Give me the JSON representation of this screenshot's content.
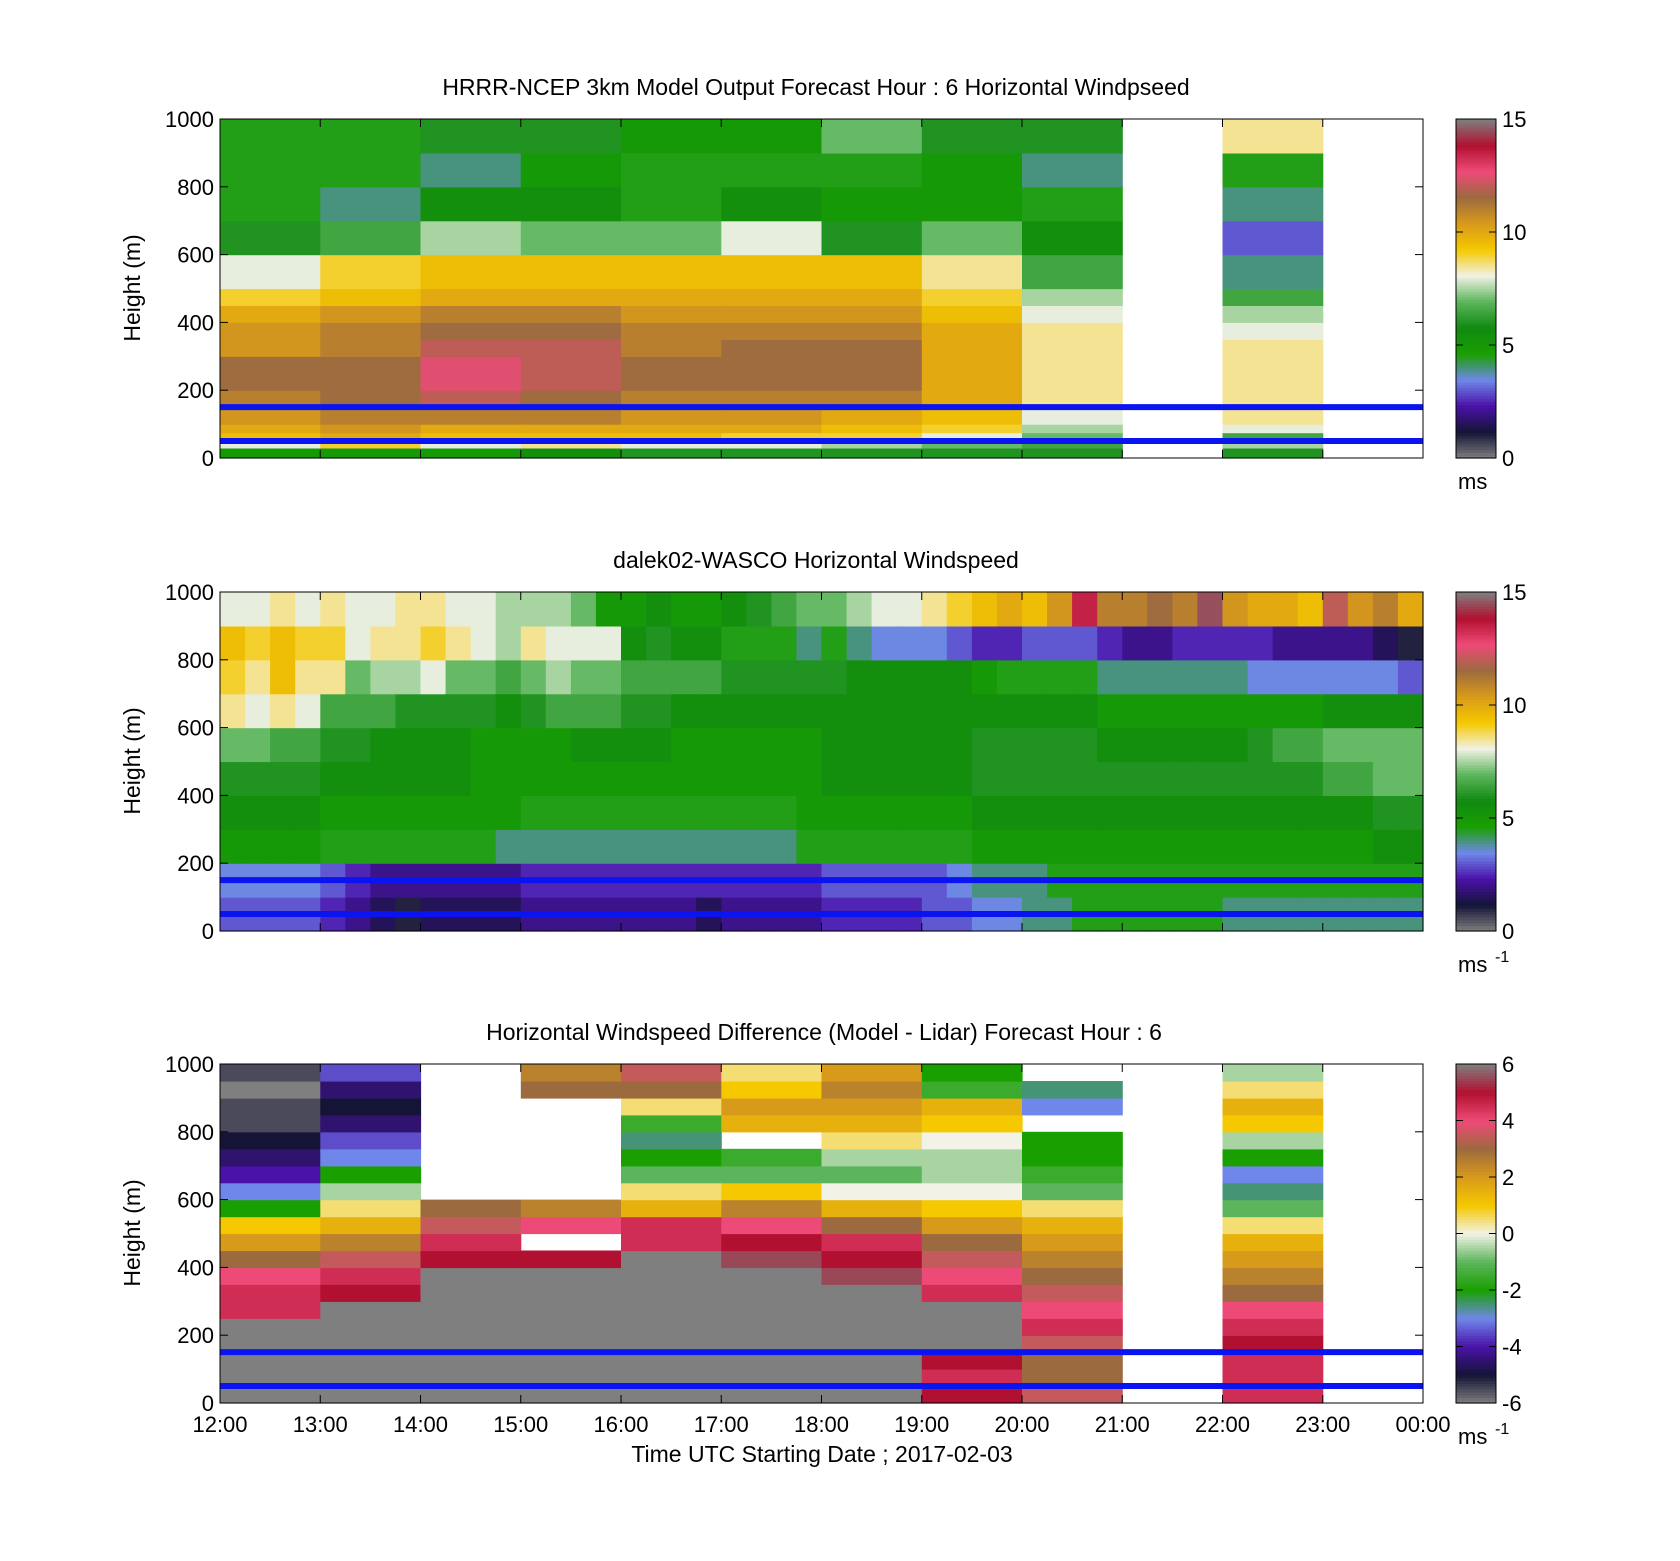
{
  "colors": {
    "windspeed_scale": [
      "#7f7f7f",
      "#141436",
      "#4a12a8",
      "#6f87ea",
      "#19a000",
      "#118a11",
      "#5cb55c",
      "#f2f2e6",
      "#f5c800",
      "#d89a1a",
      "#9c6a3f",
      "#ee4a78",
      "#b21030",
      "#7f7f7f"
    ],
    "difference_scale": [
      "#7f7f7f",
      "#141436",
      "#4a12a8",
      "#6f87ea",
      "#19a000",
      "#5cb55c",
      "#f2f2e6",
      "#f5c800",
      "#d89a1a",
      "#9c6a3f",
      "#ee4a78",
      "#b21030",
      "#7f7f7f"
    ],
    "missing": "#ffffff",
    "reference_lines": "#0a14f0"
  },
  "x_axis": {
    "ticks": [
      "12:00",
      "13:00",
      "14:00",
      "15:00",
      "16:00",
      "17:00",
      "18:00",
      "19:00",
      "20:00",
      "21:00",
      "22:00",
      "23:00",
      "00:00"
    ],
    "label": "Time UTC  Starting Date ; 2017-02-03"
  },
  "chart_data": [
    {
      "type": "heatmap",
      "title": "HRRR-NCEP 3km Model Output   Forecast Hour : 6 Horizontal Windpseed",
      "xlabel": "",
      "ylabel": "Height (m)",
      "yticks": [
        "0",
        "200",
        "400",
        "600",
        "800",
        "1000"
      ],
      "ylim": [
        0,
        1000
      ],
      "colorbar": {
        "ticks": [
          "0",
          "5",
          "10",
          "15"
        ],
        "unit": "ms",
        "unit_exp": "",
        "range": [
          0,
          15
        ]
      },
      "reference_lines_m": [
        150,
        50
      ],
      "x_start_hours": [
        0,
        1,
        2,
        3,
        4,
        5,
        6,
        7,
        8,
        10
      ],
      "x_width_hours": 1,
      "height_levels_m": [
        0,
        30,
        50,
        75,
        100,
        150,
        200,
        250,
        300,
        350,
        400,
        450,
        500,
        600,
        700,
        800,
        900,
        1000
      ],
      "values": [
        [
          5,
          8,
          9.5,
          10,
          10.5,
          11,
          11.5,
          11.5,
          10.5,
          10.5,
          10,
          9,
          8,
          6,
          4.5,
          4.5,
          4.5
        ],
        [
          5,
          9,
          10,
          10.5,
          11,
          11.5,
          11.5,
          11.5,
          11,
          11,
          10.5,
          9.5,
          9,
          6.5,
          4,
          4.5,
          4.5
        ],
        [
          5,
          8,
          9.5,
          10,
          11,
          12,
          12.5,
          12.5,
          12,
          11.5,
          11,
          10,
          9.5,
          7.5,
          5.5,
          4,
          6
        ],
        [
          5.5,
          8.5,
          9.5,
          10,
          11,
          11.5,
          12,
          12,
          12,
          11.5,
          11,
          10,
          9.5,
          7,
          5.5,
          5,
          6
        ],
        [
          6,
          8,
          9.5,
          10,
          10.5,
          11,
          11.5,
          11.5,
          11,
          11,
          10.5,
          10,
          9.5,
          7,
          4.5,
          4.5,
          5
        ],
        [
          6,
          8,
          9,
          10,
          10.5,
          11,
          11.5,
          11.5,
          11.5,
          11,
          10.5,
          10,
          9.5,
          8,
          5.5,
          4.5,
          5
        ],
        [
          6,
          7.5,
          9,
          9.5,
          10,
          11,
          11.5,
          11.5,
          11.5,
          11,
          10.5,
          10,
          9.5,
          6,
          5,
          4.5,
          7
        ],
        [
          6,
          7,
          8,
          9,
          9.5,
          10,
          10,
          10,
          10,
          10,
          9.5,
          9,
          8.5,
          7,
          5,
          5,
          6
        ],
        [
          6,
          6.5,
          7,
          7.5,
          8,
          8.5,
          8.5,
          8.5,
          8.5,
          8.5,
          8,
          7.5,
          6.5,
          5.5,
          4.5,
          4,
          6
        ],
        [
          6,
          7.5,
          6.5,
          8,
          8.5,
          8.5,
          8.5,
          8.5,
          8.5,
          8,
          7.5,
          6.5,
          4,
          3,
          4,
          4.5,
          8.5
        ]
      ]
    },
    {
      "type": "heatmap",
      "title": "dalek02-WASCO  Horizontal Windspeed",
      "xlabel": "",
      "ylabel": "Height (m)",
      "yticks": [
        "0",
        "200",
        "400",
        "600",
        "800",
        "1000"
      ],
      "ylim": [
        0,
        1000
      ],
      "colorbar": {
        "ticks": [
          "0",
          "5",
          "10",
          "15"
        ],
        "unit": "ms",
        "unit_exp": "-1",
        "range": [
          0,
          15
        ]
      },
      "reference_lines_m": [
        150,
        50
      ],
      "x_step_hours": 0.25,
      "height_levels_m": [
        0,
        100,
        200,
        300,
        400,
        500,
        600,
        700,
        800,
        900,
        1000
      ],
      "x_start_hours": [
        0,
        0.25,
        0.5,
        0.75,
        1,
        1.25,
        1.5,
        1.75,
        2,
        2.25,
        2.5,
        2.75,
        3,
        3.25,
        3.5,
        3.75,
        4,
        4.25,
        4.5,
        4.75,
        5,
        5.25,
        5.5,
        5.75,
        6,
        6.25,
        6.5,
        6.75,
        7,
        7.25,
        7.5,
        7.75,
        8,
        8.25,
        8.5,
        8.75,
        9,
        9.25,
        9.5,
        9.75,
        10,
        10.25,
        10.5,
        10.75,
        11,
        11.25,
        11.5,
        11.75
      ],
      "values": [
        [
          3,
          3.5,
          5,
          5.5,
          6,
          7,
          8.5,
          9,
          9.5,
          8
        ],
        [
          3,
          3.5,
          5,
          5.5,
          6,
          7,
          8,
          8.5,
          9,
          8
        ],
        [
          3,
          3.5,
          5,
          5.5,
          6,
          6.5,
          8.5,
          9.5,
          9.5,
          8.5
        ],
        [
          3,
          3.5,
          5,
          5.5,
          6,
          6.5,
          8,
          8.5,
          9,
          8
        ],
        [
          2.5,
          3,
          4.5,
          5,
          5.5,
          6,
          6.5,
          8.5,
          9,
          8.5
        ],
        [
          2,
          2.5,
          4.5,
          5,
          5.5,
          6,
          6.5,
          7,
          8,
          8
        ],
        [
          1.5,
          2,
          4.5,
          5,
          5.5,
          5.5,
          6.5,
          7.5,
          8.5,
          8
        ],
        [
          1,
          2,
          4.5,
          5,
          5.5,
          5.5,
          6,
          7.5,
          8.5,
          8.5
        ],
        [
          1.5,
          2,
          4.5,
          5,
          5.5,
          5.5,
          6,
          8,
          9,
          8.5
        ],
        [
          1.5,
          2,
          4.5,
          5,
          5.5,
          5.5,
          6,
          7,
          8.5,
          8
        ],
        [
          1.5,
          2,
          4.5,
          5,
          5,
          5,
          6,
          7,
          8,
          8
        ],
        [
          1.5,
          2,
          4,
          5,
          5,
          5,
          5.5,
          6.5,
          7.5,
          7.5
        ],
        [
          2,
          2.5,
          4,
          4.5,
          5,
          5,
          6,
          7,
          8.5,
          7.5
        ],
        [
          2,
          2.5,
          4,
          4.5,
          5,
          5,
          6.5,
          7.5,
          8,
          7.5
        ],
        [
          2,
          2.5,
          4,
          4.5,
          5,
          5.5,
          6.5,
          7,
          8,
          7
        ],
        [
          2,
          2.5,
          4,
          4.5,
          5,
          5.5,
          6.5,
          7,
          8,
          5
        ],
        [
          2,
          2.5,
          4,
          4.5,
          5,
          5.5,
          6,
          6.5,
          5.5,
          5
        ],
        [
          2,
          2.5,
          4,
          4.5,
          5,
          5.5,
          6,
          6.5,
          6,
          5.5
        ],
        [
          2,
          2.5,
          4,
          4.5,
          5,
          5,
          5.5,
          6.5,
          5.5,
          5
        ],
        [
          1.5,
          2.5,
          4,
          4.5,
          5,
          5,
          5.5,
          6.5,
          5.5,
          5
        ],
        [
          2,
          2.5,
          4,
          4.5,
          5,
          5,
          5.5,
          6,
          4.5,
          5.5
        ],
        [
          2,
          2.5,
          4,
          4.5,
          5,
          5,
          5.5,
          6,
          4.5,
          6
        ],
        [
          2,
          2.5,
          4,
          4.5,
          5,
          5,
          5.5,
          6,
          4.5,
          6.5
        ],
        [
          2,
          2.5,
          4.5,
          5,
          5,
          5,
          5.5,
          6,
          4,
          7
        ],
        [
          2.5,
          3,
          4.5,
          5,
          5.5,
          5.5,
          5.5,
          6,
          4.5,
          7
        ],
        [
          2.5,
          3,
          4.5,
          5,
          5.5,
          5.5,
          5.5,
          5.5,
          4,
          7.5
        ],
        [
          2.5,
          3,
          4.5,
          5,
          5.5,
          5.5,
          5.5,
          5.5,
          3.5,
          8
        ],
        [
          2.5,
          3,
          4.5,
          5,
          5.5,
          5.5,
          5.5,
          5.5,
          3.5,
          8
        ],
        [
          3,
          3,
          4.5,
          5,
          5.5,
          5.5,
          5.5,
          5.5,
          3.5,
          8.5
        ],
        [
          3,
          3.5,
          4.5,
          5,
          5.5,
          5.5,
          5.5,
          5.5,
          3,
          9
        ],
        [
          3.5,
          4,
          5,
          5.5,
          6,
          6,
          5.5,
          5,
          2.5,
          9.5
        ],
        [
          3.5,
          4,
          5,
          5.5,
          6,
          6,
          5.5,
          4.5,
          2.5,
          10
        ],
        [
          4,
          4,
          5,
          5.5,
          6,
          6,
          5.5,
          4.5,
          3,
          9.5
        ],
        [
          4,
          4.5,
          5,
          5.5,
          6,
          6,
          5.5,
          4.5,
          3,
          10.5
        ],
        [
          4.5,
          4.5,
          5,
          5.5,
          6,
          6,
          5.5,
          4.5,
          3,
          13.5
        ],
        [
          4.5,
          4.5,
          5,
          5.5,
          6,
          5.5,
          5,
          4,
          2.5,
          11
        ],
        [
          4.5,
          4.5,
          5,
          5.5,
          6,
          5.5,
          5,
          4,
          2,
          11
        ],
        [
          4.5,
          4.5,
          5,
          5.5,
          6,
          5.5,
          5,
          4,
          2,
          11.5
        ],
        [
          4.5,
          4.5,
          5,
          5.5,
          6,
          5.5,
          5,
          4,
          2.5,
          11
        ],
        [
          4.5,
          4.5,
          5,
          5.5,
          6,
          5.5,
          5,
          4,
          2.5,
          14.5
        ],
        [
          4,
          4.5,
          5,
          5.5,
          6,
          5.5,
          5,
          4,
          2.5,
          10.5
        ],
        [
          4,
          4.5,
          5,
          5.5,
          6,
          6,
          5,
          3.5,
          2.5,
          10
        ],
        [
          4,
          4.5,
          5,
          5.5,
          6,
          6.5,
          5,
          3.5,
          2,
          10
        ],
        [
          4,
          4.5,
          5,
          5.5,
          6,
          6.5,
          5,
          3.5,
          2,
          9.5
        ],
        [
          4,
          4.5,
          5,
          5.5,
          6.5,
          7,
          5.5,
          3.5,
          2,
          12
        ],
        [
          4,
          4.5,
          5,
          5.5,
          6.5,
          7,
          5.5,
          3.5,
          2,
          10.5
        ],
        [
          4,
          4.5,
          5.5,
          6,
          7,
          7,
          5.5,
          3.5,
          1.5,
          11
        ],
        [
          4,
          4.5,
          5.5,
          6,
          7,
          7,
          5.5,
          3,
          1,
          10
        ]
      ]
    },
    {
      "type": "heatmap",
      "title": "Horizontal Windspeed Difference (Model - Lidar) Forecast Hour : 6",
      "xlabel": "Time UTC  Starting Date ; 2017-02-03",
      "ylabel": "Height (m)",
      "yticks": [
        "0",
        "200",
        "400",
        "600",
        "800",
        "1000"
      ],
      "ylim": [
        0,
        1000
      ],
      "colorbar": {
        "ticks": [
          "-6",
          "-4",
          "-2",
          "0",
          "2",
          "4",
          "6"
        ],
        "unit": "ms",
        "unit_exp": "-1",
        "range": [
          -6,
          6
        ]
      },
      "reference_lines_m": [
        150,
        50
      ],
      "x_start_hours": [
        0,
        1,
        2,
        3,
        4,
        5,
        6,
        7,
        8,
        10
      ],
      "x_width_hours": 1,
      "height_levels_m": [
        0,
        50,
        100,
        150,
        200,
        250,
        300,
        350,
        400,
        450,
        500,
        550,
        600,
        650,
        700,
        750,
        800,
        850,
        900,
        950,
        1000
      ],
      "values": [
        [
          6.5,
          6.5,
          6.5,
          6.5,
          6.5,
          4.5,
          4.5,
          4,
          3,
          2,
          1,
          -2,
          -3,
          -4,
          -4.5,
          -5,
          -5.5,
          -5.5,
          -6,
          -5.5
        ],
        [
          6.5,
          6.5,
          6.5,
          6.5,
          6.5,
          6.5,
          5,
          4.5,
          3.5,
          2.5,
          1.5,
          0.5,
          -0.5,
          -2,
          -3,
          -3.5,
          -4.5,
          -5,
          -4.5,
          -3.5
        ],
        [
          6.5,
          6.5,
          6.5,
          6.5,
          6.5,
          6.5,
          6.5,
          6.5,
          5,
          4.5,
          3.5,
          3,
          null,
          null,
          null,
          null,
          null,
          null,
          null,
          null
        ],
        [
          6.5,
          6.5,
          6.5,
          6.5,
          6.5,
          6.5,
          6.5,
          6.5,
          5,
          null,
          4,
          2.5,
          null,
          null,
          null,
          null,
          null,
          null,
          3,
          2.5
        ],
        [
          6.5,
          6.5,
          6.5,
          6.5,
          6.5,
          6.5,
          6.5,
          6.5,
          6.5,
          4.5,
          4.5,
          1.5,
          0.5,
          -1,
          -2,
          -2.5,
          -1.5,
          0.5,
          3,
          3.5
        ],
        [
          6.5,
          6.5,
          6.5,
          6.5,
          6.5,
          6.5,
          6.5,
          6.5,
          5.5,
          5,
          4,
          2.5,
          1,
          -1,
          -1.5,
          null,
          1.5,
          2,
          1,
          0.5
        ],
        [
          6.5,
          6.5,
          6.5,
          6.5,
          6.5,
          6.5,
          6.5,
          5.5,
          5,
          4.5,
          3,
          1.5,
          0,
          -1,
          -0.5,
          0.5,
          1.5,
          2,
          2.5,
          2
        ],
        [
          5,
          4.5,
          5,
          6.5,
          6.5,
          6.5,
          4.5,
          4,
          3.5,
          3,
          2,
          1,
          0,
          -0.5,
          -0.5,
          0,
          1,
          1.5,
          -1.5,
          -2
        ],
        [
          3.5,
          3,
          3,
          3.5,
          4.5,
          4,
          3.5,
          3,
          2.5,
          2,
          1.5,
          0.5,
          -1,
          -1.5,
          -2,
          -2,
          null,
          -3,
          -2.5,
          null
        ],
        [
          4.5,
          4.5,
          4.5,
          5,
          4.5,
          4,
          3,
          2.5,
          2,
          1.5,
          0.5,
          -1,
          -2.5,
          -3,
          -2,
          -0.5,
          1,
          1.5,
          0.5,
          -0.5
        ]
      ]
    }
  ]
}
